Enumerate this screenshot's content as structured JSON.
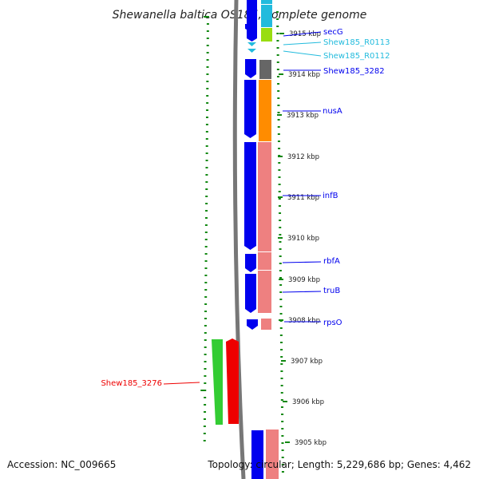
{
  "title": "Shewanella baltica OS185, complete genome",
  "footer": {
    "accession": "Accession: NC_009665",
    "topology": "Topology: circular; Length: 5,229,686 bp; Genes: 4,462"
  },
  "colors": {
    "blue": "#0000ee",
    "cyan": "#22bbdd",
    "red": "#ee0000",
    "green": "#33cc33",
    "orange": "#ff8c00",
    "salmon": "#ee8080",
    "gray": "#666666",
    "lime": "#99dd11",
    "tick": "#118811"
  },
  "kbp_labels": [
    "3915 kbp",
    "3914 kbp",
    "3913 kbp",
    "3912 kbp",
    "3911 kbp",
    "3910 kbp",
    "3909 kbp",
    "3908 kbp",
    "3907 kbp",
    "3906 kbp",
    "3905 kbp"
  ],
  "gene_labels": [
    {
      "text": "secG",
      "color": "blue"
    },
    {
      "text": "Shew185_R0113",
      "color": "cyan"
    },
    {
      "text": "Shew185_R0112",
      "color": "cyan"
    },
    {
      "text": "Shew185_3282",
      "color": "blue"
    },
    {
      "text": "nusA",
      "color": "blue"
    },
    {
      "text": "infB",
      "color": "blue"
    },
    {
      "text": "rbfA",
      "color": "blue"
    },
    {
      "text": "truB",
      "color": "blue"
    },
    {
      "text": "rpsO",
      "color": "blue"
    },
    {
      "text": "Shew185_3276",
      "color": "red"
    }
  ]
}
